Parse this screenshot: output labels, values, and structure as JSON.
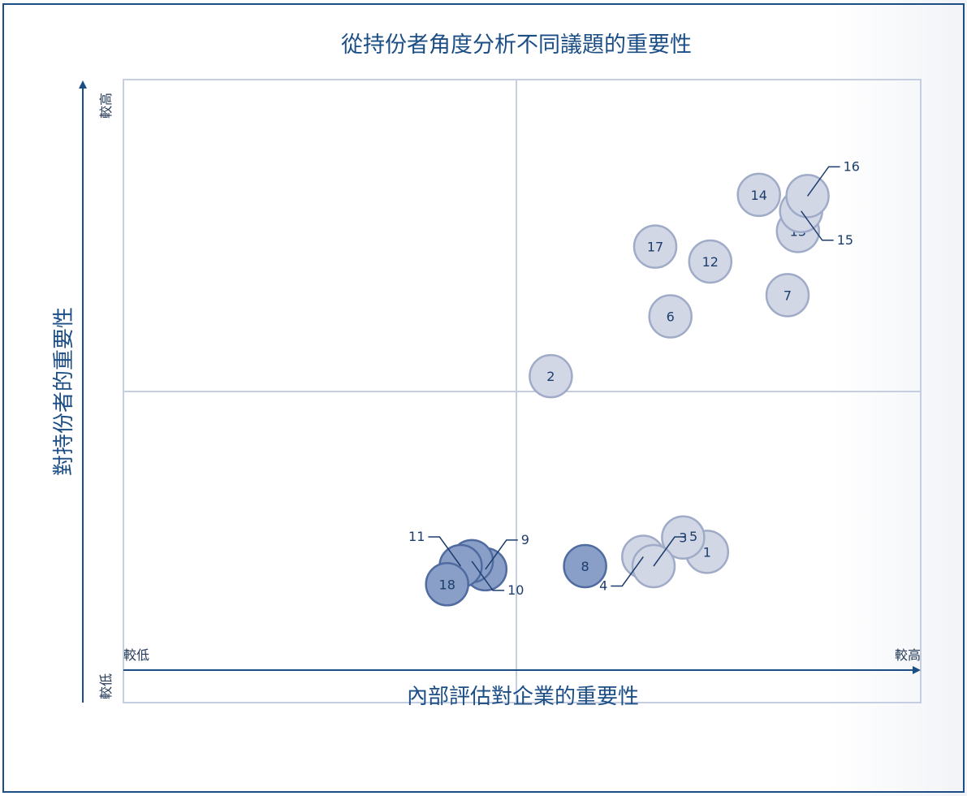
{
  "chart_data": {
    "type": "scatter",
    "title": "從持份者角度分析不同議題的重要性",
    "xlabel": "內部評估對企業的重要性",
    "ylabel": "對持份者的重要性",
    "x_ticks": {
      "low": "較低",
      "high": "較高"
    },
    "y_ticks": {
      "low": "較低",
      "high": "較高"
    },
    "xlim": [
      0,
      100
    ],
    "ylim": [
      0,
      100
    ],
    "quadrant_split": {
      "x": 50,
      "y": 50
    },
    "grid": true,
    "colors": {
      "frame": "#1c4e86",
      "axis": "#1c4e86",
      "grid": "#c5cee0",
      "bubble_light_fill": "#d2d7e6",
      "bubble_light_stroke": "#9fabc7",
      "bubble_dark_fill": "#8a9fc7",
      "bubble_dark_stroke": "#4f6ba0"
    },
    "points": [
      {
        "label": "1",
        "x": 73.2,
        "y": 75.8,
        "tone": "light"
      },
      {
        "label": "2",
        "x": 53.6,
        "y": 47.6,
        "tone": "light"
      },
      {
        "label": "3",
        "x": 70.2,
        "y": 73.5,
        "tone": "light"
      },
      {
        "label": "4",
        "x": 65.2,
        "y": 76.6,
        "tone": "light",
        "callout": "left"
      },
      {
        "label": "5",
        "x": 66.5,
        "y": 78.1,
        "tone": "light",
        "callout": "right"
      },
      {
        "label": "6",
        "x": 68.6,
        "y": 38.0,
        "tone": "light"
      },
      {
        "label": "7",
        "x": 83.3,
        "y": 34.6,
        "tone": "light"
      },
      {
        "label": "8",
        "x": 57.9,
        "y": 78.1,
        "tone": "dark"
      },
      {
        "label": "9",
        "x": 45.4,
        "y": 78.6,
        "tone": "dark",
        "callout": "right"
      },
      {
        "label": "10",
        "x": 43.7,
        "y": 77.3,
        "tone": "dark",
        "callout": "right"
      },
      {
        "label": "11",
        "x": 42.3,
        "y": 78.1,
        "tone": "dark",
        "callout": "left"
      },
      {
        "label": "12",
        "x": 73.6,
        "y": 29.2,
        "tone": "light"
      },
      {
        "label": "13",
        "x": 84.6,
        "y": 24.3,
        "tone": "light"
      },
      {
        "label": "14",
        "x": 79.7,
        "y": 18.5,
        "tone": "light"
      },
      {
        "label": "15",
        "x": 85.0,
        "y": 21.1,
        "tone": "light",
        "callout": "right"
      },
      {
        "label": "16",
        "x": 85.8,
        "y": 18.7,
        "tone": "light",
        "callout": "right"
      },
      {
        "label": "17",
        "x": 66.7,
        "y": 26.8,
        "tone": "light"
      },
      {
        "label": "18",
        "x": 40.6,
        "y": 81.0,
        "tone": "dark"
      }
    ]
  }
}
